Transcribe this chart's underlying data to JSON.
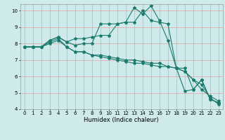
{
  "title": "",
  "xlabel": "Humidex (Indice chaleur)",
  "xlim": [
    -0.5,
    23.5
  ],
  "ylim": [
    4,
    10.4
  ],
  "xticks": [
    0,
    1,
    2,
    3,
    4,
    5,
    6,
    7,
    8,
    9,
    10,
    11,
    12,
    13,
    14,
    15,
    16,
    17,
    18,
    19,
    20,
    21,
    22,
    23
  ],
  "yticks": [
    4,
    5,
    6,
    7,
    8,
    9,
    10
  ],
  "bg_color": "#ceeaea",
  "line_color": "#1a7a6e",
  "grid_color": "#e8a0a0",
  "series1_x": [
    0,
    1,
    2,
    3,
    4,
    5,
    6,
    7,
    8,
    9,
    10,
    11,
    12,
    13,
    14,
    15,
    16,
    17,
    18,
    19,
    20,
    21,
    22,
    23
  ],
  "series1_y": [
    7.8,
    7.8,
    7.8,
    8.2,
    8.4,
    8.1,
    7.9,
    8.0,
    8.0,
    9.2,
    9.2,
    9.2,
    9.3,
    9.3,
    10.0,
    9.4,
    9.3,
    9.2,
    6.5,
    6.5,
    5.2,
    5.8,
    4.6,
    4.4
  ],
  "series2_x": [
    0,
    1,
    2,
    3,
    4,
    5,
    6,
    7,
    8,
    9,
    10,
    11,
    12,
    13,
    14,
    15,
    16,
    17,
    18,
    19,
    20,
    21,
    22,
    23
  ],
  "series2_y": [
    7.8,
    7.8,
    7.8,
    8.1,
    8.3,
    7.8,
    7.5,
    7.5,
    7.3,
    7.2,
    7.1,
    7.0,
    6.9,
    6.8,
    6.8,
    6.7,
    6.6,
    6.6,
    6.5,
    6.3,
    5.8,
    5.2,
    4.8,
    4.5
  ],
  "series3_x": [
    0,
    1,
    2,
    3,
    4,
    5,
    6,
    7,
    8,
    9,
    10,
    11,
    12,
    13,
    14,
    15,
    16,
    17,
    18,
    19,
    20,
    21,
    22,
    23
  ],
  "series3_y": [
    7.8,
    7.8,
    7.8,
    8.2,
    8.4,
    8.1,
    8.3,
    8.3,
    8.4,
    8.5,
    8.5,
    9.2,
    9.3,
    10.2,
    9.8,
    10.3,
    9.4,
    8.2,
    6.5,
    5.1,
    5.2,
    5.8,
    4.6,
    4.4
  ],
  "series4_x": [
    0,
    1,
    2,
    3,
    4,
    5,
    6,
    7,
    8,
    9,
    10,
    11,
    12,
    13,
    14,
    15,
    16,
    17,
    18,
    19,
    20,
    21,
    22,
    23
  ],
  "series4_y": [
    7.8,
    7.8,
    7.8,
    8.0,
    8.2,
    7.8,
    7.5,
    7.5,
    7.3,
    7.3,
    7.2,
    7.1,
    7.0,
    7.0,
    6.9,
    6.8,
    6.8,
    6.6,
    6.5,
    6.3,
    5.8,
    5.5,
    4.7,
    4.3
  ]
}
